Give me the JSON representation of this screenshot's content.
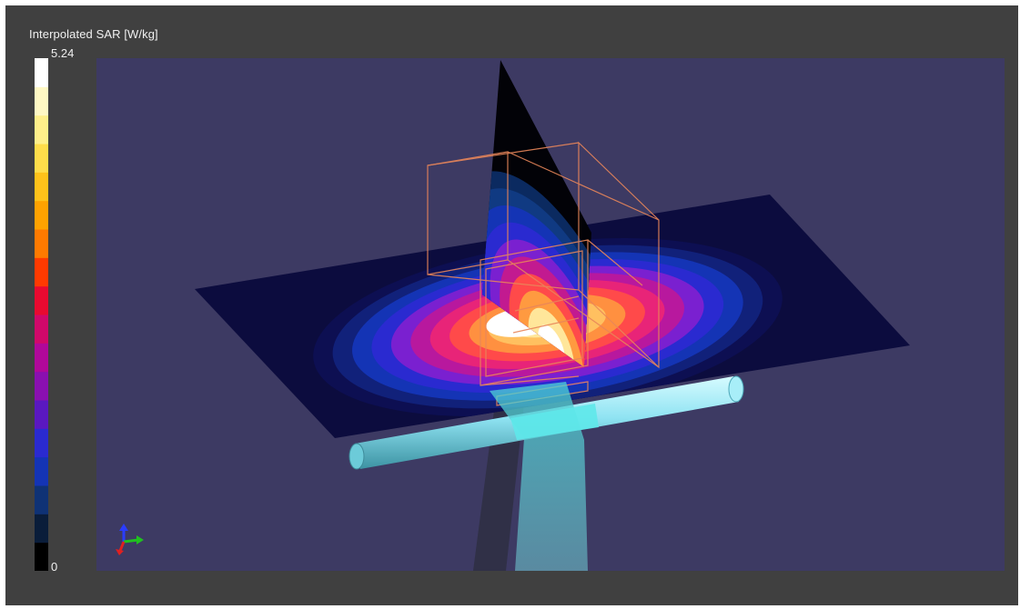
{
  "colorbar": {
    "title": "Interpolated SAR [W/kg]",
    "max_label": "5.24",
    "min_label": "0",
    "colors": [
      "#000000",
      "#0a1d3a",
      "#0f3275",
      "#1434b5",
      "#2a2ad0",
      "#5a18c0",
      "#8a10b0",
      "#b0089a",
      "#d0086a",
      "#e80a30",
      "#ff3a00",
      "#ff7a00",
      "#ffa200",
      "#ffc21a",
      "#ffdd4a",
      "#ffef8a",
      "#fff8c4",
      "#ffffff"
    ]
  },
  "scene": {
    "background": "#3d3a63",
    "field_colors": [
      "#0d0f52",
      "#11217a",
      "#1434b5",
      "#2a2ad0",
      "#7a20d0",
      "#b8189e",
      "#e82478",
      "#ff4a4a",
      "#ff9040",
      "#ffc060",
      "#ffe69a",
      "#fff6d8"
    ],
    "cylinder_color": "#8fe3f2",
    "beam_color": "#55c2c8",
    "wire_color": "#e8865a"
  },
  "axes_icon": "xyz-orientation-axes-icon"
}
